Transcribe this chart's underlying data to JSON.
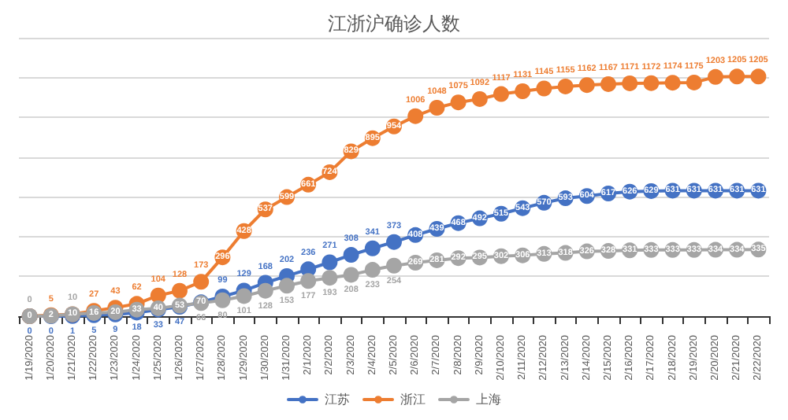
{
  "chart_data": {
    "type": "line",
    "title": "江浙沪确诊人数",
    "categories": [
      "1/19/2020",
      "1/20/2020",
      "1/21/2020",
      "1/22/2020",
      "1/23/2020",
      "1/24/2020",
      "1/25/2020",
      "1/26/2020",
      "1/27/2020",
      "1/28/2020",
      "1/29/2020",
      "1/30/2020",
      "1/31/2020",
      "2/1/2020",
      "2/2/2020",
      "2/3/2020",
      "2/4/2020",
      "2/5/2020",
      "2/6/2020",
      "2/7/2020",
      "2/8/2020",
      "2/9/2020",
      "2/10/2020",
      "2/11/2020",
      "2/12/2020",
      "2/13/2020",
      "2/14/2020",
      "2/15/2020",
      "2/16/2020",
      "2/17/2020",
      "2/18/2020",
      "2/19/2020",
      "2/20/2020",
      "2/21/2020",
      "2/22/2020"
    ],
    "series": [
      {
        "name": "江苏",
        "color": "#4472c4",
        "values": [
          0,
          0,
          1,
          5,
          9,
          18,
          33,
          47,
          70,
          99,
          129,
          168,
          202,
          236,
          271,
          308,
          341,
          373,
          408,
          439,
          468,
          492,
          515,
          543,
          570,
          593,
          604,
          617,
          626,
          629,
          631,
          631,
          631,
          631,
          631
        ]
      },
      {
        "name": "浙江",
        "color": "#ed7d31",
        "values": [
          0,
          5,
          10,
          27,
          43,
          62,
          104,
          128,
          173,
          296,
          428,
          537,
          599,
          661,
          724,
          829,
          895,
          954,
          1006,
          1048,
          1075,
          1092,
          1117,
          1131,
          1145,
          1155,
          1162,
          1167,
          1171,
          1172,
          1174,
          1175,
          1203,
          1205,
          1205
        ]
      },
      {
        "name": "上海",
        "color": "#a5a5a5",
        "values": [
          0,
          2,
          10,
          16,
          20,
          33,
          40,
          53,
          66,
          80,
          101,
          128,
          153,
          177,
          193,
          208,
          233,
          254,
          269,
          281,
          292,
          295,
          302,
          306,
          313,
          318,
          326,
          328,
          331,
          333,
          333,
          333,
          334,
          334,
          335
        ]
      }
    ],
    "ylim": [
      0,
      1400
    ],
    "yticks": [
      {
        "value": 0,
        "label": null
      },
      {
        "value": 200,
        "label": null
      },
      {
        "value": 400,
        "label": null
      },
      {
        "value": 600,
        "label": null
      },
      {
        "value": 800,
        "label": null
      },
      {
        "value": 1000,
        "label": null
      },
      {
        "value": 1200,
        "label": null
      },
      {
        "value": 1400,
        "label": null
      }
    ],
    "tick_labels": "x",
    "grid": "y",
    "legend": "bottom",
    "marker": "circle",
    "line_style": "solid",
    "data_labels": true
  }
}
